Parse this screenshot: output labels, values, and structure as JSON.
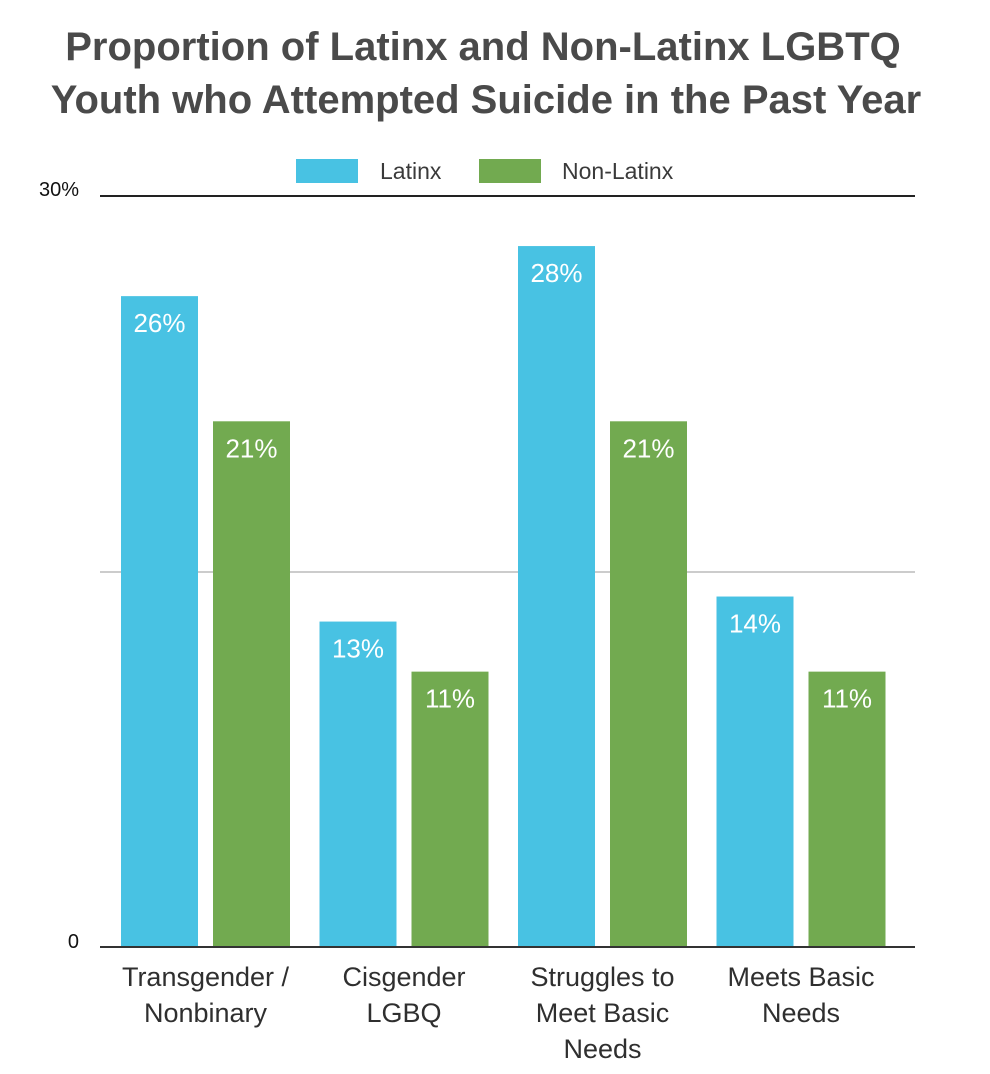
{
  "chart_data": {
    "type": "bar",
    "title_lines": [
      "Proportion of Latinx and Non-Latinx LGBTQ",
      "Youth who Attempted Suicide in the Past Year"
    ],
    "categories": [
      [
        "Transgender /",
        "Nonbinary"
      ],
      [
        "Cisgender",
        "LGBQ"
      ],
      [
        "Struggles to",
        "Meet Basic",
        "Needs"
      ],
      [
        "Meets Basic",
        "Needs"
      ]
    ],
    "series": [
      {
        "name": "Latinx",
        "color": "#48c2e3",
        "values": [
          26,
          13,
          28,
          14
        ],
        "labels": [
          "26%",
          "13%",
          "28%",
          "14%"
        ]
      },
      {
        "name": "Non-Latinx",
        "color": "#72aa50",
        "values": [
          21,
          11,
          21,
          11
        ],
        "labels": [
          "21%",
          "11%",
          "21%",
          "11%"
        ]
      }
    ],
    "ylim": [
      0,
      30
    ],
    "y_tick_labels": [
      "0",
      "30%"
    ],
    "gridline_at": 15,
    "legend_position": "top-center"
  }
}
